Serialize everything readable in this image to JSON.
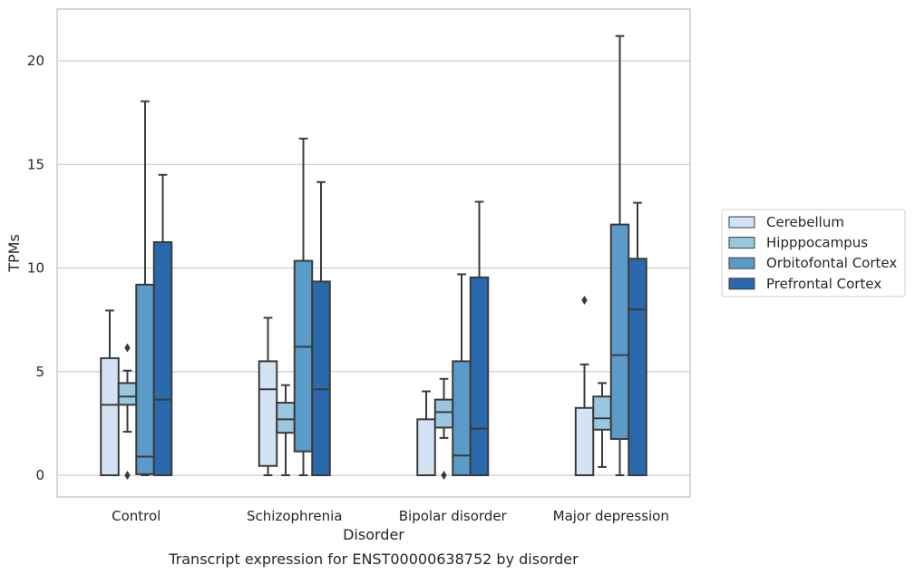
{
  "chart_data": {
    "type": "box",
    "title": "",
    "caption": "Transcript expression for ENST00000638752 by disorder",
    "xlabel": "Disorder",
    "ylabel": "TPMs",
    "ylim": [
      -1.05,
      22.5
    ],
    "yticks": [
      0,
      5,
      10,
      15,
      20
    ],
    "grid": "horizontal",
    "legend_position": "right",
    "categories": [
      "Control",
      "Schizophrenia",
      "Bipolar disorder",
      "Major depression"
    ],
    "series": [
      {
        "name": "Cerebellum",
        "color": "#d3e3f3",
        "boxes": [
          {
            "whislo": 0,
            "q1": 0,
            "med": 3.4,
            "q3": 5.65,
            "whishi": 7.95,
            "fliers": []
          },
          {
            "whislo": 0,
            "q1": 0.45,
            "med": 4.15,
            "q3": 5.5,
            "whishi": 7.6,
            "fliers": []
          },
          {
            "whislo": 0,
            "q1": 0,
            "med": 0,
            "q3": 2.7,
            "whishi": 4.05,
            "fliers": []
          },
          {
            "whislo": 0,
            "q1": 0,
            "med": 0,
            "q3": 3.25,
            "whishi": 5.35,
            "fliers": [
              8.45
            ]
          }
        ]
      },
      {
        "name": "Hipppocampus",
        "color": "#9ac7e0",
        "boxes": [
          {
            "whislo": 2.1,
            "q1": 3.4,
            "med": 3.8,
            "q3": 4.45,
            "whishi": 5.05,
            "fliers": [
              6.15,
              0
            ]
          },
          {
            "whislo": 0,
            "q1": 2.05,
            "med": 2.7,
            "q3": 3.5,
            "whishi": 4.35,
            "fliers": []
          },
          {
            "whislo": 1.8,
            "q1": 2.3,
            "med": 3.05,
            "q3": 3.65,
            "whishi": 4.65,
            "fliers": [
              0
            ]
          },
          {
            "whislo": 0.4,
            "q1": 2.2,
            "med": 2.75,
            "q3": 3.8,
            "whishi": 4.45,
            "fliers": []
          }
        ]
      },
      {
        "name": "Orbitofontal Cortex",
        "color": "#5b9bc9",
        "boxes": [
          {
            "whislo": 0,
            "q1": 0.05,
            "med": 0.9,
            "q3": 9.2,
            "whishi": 18.05,
            "fliers": []
          },
          {
            "whislo": 0,
            "q1": 1.15,
            "med": 6.2,
            "q3": 10.35,
            "whishi": 16.25,
            "fliers": []
          },
          {
            "whislo": 0,
            "q1": 0,
            "med": 0.95,
            "q3": 5.5,
            "whishi": 9.7,
            "fliers": []
          },
          {
            "whislo": 0,
            "q1": 1.75,
            "med": 5.8,
            "q3": 12.1,
            "whishi": 21.2,
            "fliers": []
          }
        ]
      },
      {
        "name": "Prefrontal Cortex",
        "color": "#2a6aac",
        "boxes": [
          {
            "whislo": 0,
            "q1": 0,
            "med": 3.65,
            "q3": 11.25,
            "whishi": 14.5,
            "fliers": []
          },
          {
            "whislo": 0,
            "q1": 0,
            "med": 4.15,
            "q3": 9.35,
            "whishi": 14.15,
            "fliers": []
          },
          {
            "whislo": 0,
            "q1": 0,
            "med": 2.25,
            "q3": 9.55,
            "whishi": 13.2,
            "fliers": []
          },
          {
            "whislo": 0,
            "q1": 0,
            "med": 8.0,
            "q3": 10.45,
            "whishi": 13.15,
            "fliers": []
          }
        ]
      }
    ]
  }
}
